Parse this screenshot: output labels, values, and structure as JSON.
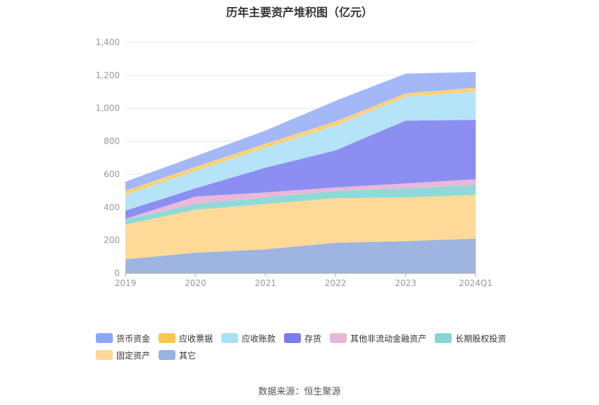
{
  "chart_data": {
    "type": "area",
    "stacked": true,
    "title": "历年主要资产堆积图（亿元）",
    "categories": [
      "2019",
      "2020",
      "2021",
      "2022",
      "2023",
      "2024Q1"
    ],
    "ylim": [
      0,
      1400
    ],
    "yticks": [
      "0",
      "200",
      "400",
      "600",
      "800",
      "1,000",
      "1,200",
      "1,400"
    ],
    "ytick_values": [
      0,
      200,
      400,
      600,
      800,
      1000,
      1200,
      1400
    ],
    "grid": true,
    "legend_position": "bottom",
    "series": [
      {
        "name": "其它",
        "color": "#9db5e0",
        "values": [
          85,
          125,
          145,
          185,
          195,
          210
        ]
      },
      {
        "name": "固定资产",
        "color": "#ffd998",
        "values": [
          210,
          260,
          275,
          270,
          265,
          265
        ]
      },
      {
        "name": "长期股权投资",
        "color": "#8fdad8",
        "values": [
          30,
          35,
          40,
          45,
          55,
          60
        ]
      },
      {
        "name": "其他非流动金融资产",
        "color": "#eab8d9",
        "values": [
          5,
          45,
          30,
          20,
          30,
          35
        ]
      },
      {
        "name": "存货",
        "color": "#8c8ef2",
        "values": [
          50,
          50,
          150,
          225,
          380,
          360
        ]
      },
      {
        "name": "应收账款",
        "color": "#b5e3f8",
        "values": [
          95,
          105,
          120,
          150,
          145,
          170
        ]
      },
      {
        "name": "应收票据",
        "color": "#ffd27a",
        "values": [
          25,
          25,
          25,
          25,
          20,
          25
        ]
      },
      {
        "name": "货币资金",
        "color": "#a4b8f8",
        "values": [
          55,
          65,
          80,
          125,
          120,
          95
        ]
      }
    ],
    "legend_order": [
      "货币资金",
      "应收票据",
      "应收账款",
      "存货",
      "其他非流动金融资产",
      "长期股权投资",
      "固定资产",
      "其它"
    ],
    "legend_colors": {
      "货币资金": "#8aa7f7",
      "应收票据": "#fcc74a",
      "应收账款": "#a8e0fa",
      "存货": "#7b7cf0",
      "其他非流动金融资产": "#e7b6d8",
      "长期股权投资": "#86d6d6",
      "固定资产": "#ffd898",
      "其它": "#97b2de"
    }
  },
  "source": "数据来源：恒生聚源"
}
